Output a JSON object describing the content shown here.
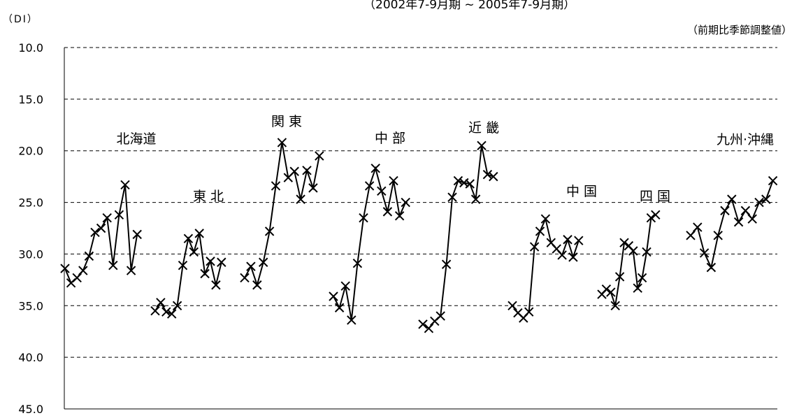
{
  "chart_data": {
    "type": "line",
    "subtitle": "（2002年7-9月期 ~ 2005年7-9月期）",
    "ylabel": "（DI）",
    "unit_note": "（前期比季節調整値）",
    "ylim": [
      10,
      45
    ],
    "y_inverted": true,
    "y_ticks": [
      "10.0",
      "15.0",
      "20.0",
      "25.0",
      "30.0",
      "35.0",
      "40.0",
      "45.0"
    ],
    "grid": "horizontal-dashed",
    "marker": "x",
    "line_color": "#000000",
    "series": [
      {
        "name": "北海道",
        "values": [
          31.4,
          32.8,
          32.3,
          31.6,
          30.2,
          27.9,
          27.5,
          26.5,
          31.1,
          26.2,
          23.3,
          31.6,
          28.1
        ]
      },
      {
        "name": "東 北",
        "values": [
          35.5,
          34.7,
          35.6,
          35.8,
          35.0,
          31.1,
          28.5,
          29.8,
          28.0,
          31.9,
          30.7,
          33.0,
          30.8
        ]
      },
      {
        "name": "関 東",
        "values": [
          32.3,
          31.2,
          33.0,
          30.8,
          27.8,
          23.4,
          19.2,
          22.6,
          22.0,
          24.7,
          21.9,
          23.6,
          20.5
        ]
      },
      {
        "name": "中 部",
        "values": [
          34.1,
          35.2,
          33.1,
          36.4,
          30.9,
          26.5,
          23.4,
          21.7,
          23.9,
          25.9,
          22.9,
          26.3,
          25.0
        ]
      },
      {
        "name": "近 畿",
        "values": [
          36.8,
          37.2,
          36.5,
          36.0,
          31.0,
          24.5,
          22.9,
          23.1,
          23.2,
          24.7,
          19.5,
          22.3,
          22.5
        ]
      },
      {
        "name": "中 国",
        "values": [
          35.0,
          35.7,
          36.2,
          35.6,
          29.3,
          27.8,
          26.6,
          28.9,
          29.5,
          30.1,
          28.6,
          30.3,
          28.7
        ]
      },
      {
        "name": "四 国",
        "values": [
          33.9,
          33.4,
          33.7,
          35.0,
          32.2,
          28.9,
          29.2,
          29.7,
          33.3,
          32.3,
          29.8,
          26.5,
          26.2
        ]
      },
      {
        "name": "九州·沖縄",
        "values": [
          28.2,
          27.4,
          29.9,
          31.3,
          28.2,
          25.8,
          24.7,
          26.9,
          25.8,
          26.6,
          25.0,
          24.7,
          22.9
        ]
      }
    ]
  }
}
